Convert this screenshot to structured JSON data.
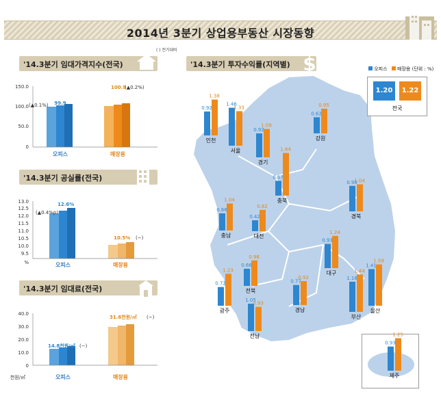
{
  "header": {
    "title": "2014년 3분기 상업용부동산 시장동향"
  },
  "colors": {
    "office": "#2d86cf",
    "retail": "#ee8a1c",
    "map": "#bcd2ea",
    "section": "#d7cdb2"
  },
  "rent_index": {
    "heading": "'14.3분기 임대가격지수(전국)",
    "note": "( ) 전기대비",
    "yticks": [
      "150.0",
      "100.0",
      "50.0",
      "0"
    ],
    "office_label": "오피스",
    "retail_label": "매장용",
    "office_value_label": "99.9",
    "retail_value_label": "100.9",
    "office_change": "(▲0.1%)",
    "retail_change": "(▲0.2%)"
  },
  "vacancy": {
    "heading": "'14.3분기 공실률(전국)",
    "yticks": [
      "13.0",
      "12.5",
      "12.0",
      "11.5",
      "11.0",
      "10.5",
      "10.0",
      "9.5",
      "%"
    ],
    "office_label": "오피스",
    "retail_label": "매장용",
    "office_value_label": "12.6%",
    "retail_value_label": "10.5%",
    "office_change": "(▲0.4%p)",
    "retail_change": "(−)"
  },
  "rent": {
    "heading": "'14.3분기 임대료(전국)",
    "yticks": [
      "40.0",
      "30.0",
      "20.0",
      "10.0",
      "0"
    ],
    "unit": "천원/㎡",
    "office_label": "오피스",
    "retail_label": "매장용",
    "office_value_label": "14.8천원/㎡",
    "retail_value_label": "31.6천원/㎡",
    "office_change": "(−)",
    "retail_change": "(−)"
  },
  "returns": {
    "heading": "'14.3분기 투자수익률(지역별)",
    "legend_office": "오피스",
    "legend_retail": "매장용",
    "legend_unit": "(단위 : %)",
    "national_label": "전국",
    "national_office": "1.20",
    "national_retail": "1.22",
    "jeju_label": "제주",
    "jeju_office": "0.93",
    "jeju_retail": "1.25"
  },
  "chart_data": [
    {
      "type": "bar",
      "title": "'14.3분기 임대가격지수(전국)",
      "categories": [
        "오피스",
        "매장용"
      ],
      "values": [
        99.9,
        100.9
      ],
      "ylim": [
        0,
        150
      ]
    },
    {
      "type": "bar",
      "title": "'14.3분기 공실률(전국)",
      "categories": [
        "오피스",
        "매장용"
      ],
      "values": [
        12.6,
        10.5
      ],
      "ylim": [
        9.5,
        13.0
      ],
      "ylabel": "%"
    },
    {
      "type": "bar",
      "title": "'14.3분기 임대료(전국)",
      "categories": [
        "오피스",
        "매장용"
      ],
      "values": [
        14.8,
        31.6
      ],
      "ylim": [
        0,
        40
      ],
      "ylabel": "천원/㎡"
    },
    {
      "type": "bar",
      "title": "'14.3분기 투자수익률(지역별)",
      "categories": [
        "인천",
        "서울",
        "경기",
        "강원",
        "충북",
        "경북",
        "충남",
        "대전",
        "대구",
        "울산",
        "전북",
        "경남",
        "부산",
        "광주",
        "전남",
        "제주",
        "전국"
      ],
      "series": [
        {
          "name": "오피스",
          "values": [
            0.92,
            1.46,
            0.92,
            0.62,
            0.57,
            0.98,
            0.66,
            0.42,
            0.93,
            1.41,
            0.66,
            0.77,
            1.16,
            0.72,
            1.05,
            0.93,
            1.2
          ]
        },
        {
          "name": "매장용",
          "values": [
            1.38,
            1.33,
            1.09,
            0.95,
            1.64,
            1.04,
            1.04,
            0.82,
            1.24,
            1.59,
            0.98,
            0.92,
            1.44,
            1.23,
            0.93,
            1.25,
            1.22
          ]
        }
      ]
    }
  ]
}
